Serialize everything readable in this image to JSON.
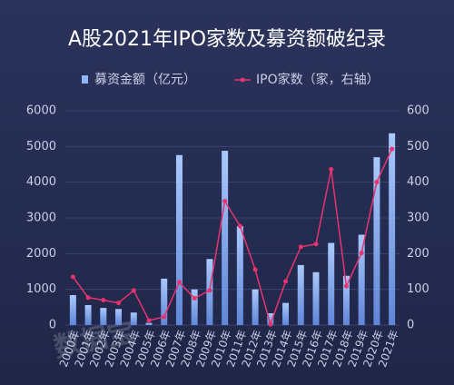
{
  "chart_data": {
    "type": "bar_line",
    "title": "A股2021年IPO家数及募资额破纪录",
    "watermark": "数据宝",
    "categories": [
      "2000年",
      "2001年",
      "2002年",
      "2003年",
      "2004年",
      "2005年",
      "2006年",
      "2007年",
      "2008年",
      "2009年",
      "2010年",
      "2011年",
      "2012年",
      "2013年",
      "2014年",
      "2015年",
      "2016年",
      "2017年",
      "2018年",
      "2019年",
      "2020年",
      "2021年"
    ],
    "series": [
      {
        "name": "募资金额（亿元）",
        "color": "#8fb6f7",
        "kind": "bar",
        "axis": "y",
        "values": [
          840,
          560,
          480,
          450,
          350,
          60,
          1300,
          4760,
          1000,
          1850,
          4880,
          2770,
          1000,
          330,
          620,
          1680,
          1480,
          2300,
          1380,
          2530,
          4700,
          5370
        ]
      },
      {
        "name": "IPO家数（家，右轴）",
        "color": "#e8336e",
        "kind": "line",
        "axis": "y2",
        "values": [
          135,
          77,
          70,
          62,
          97,
          13,
          23,
          120,
          75,
          97,
          347,
          277,
          155,
          2,
          122,
          219,
          227,
          436,
          109,
          202,
          400,
          493
        ]
      }
    ],
    "ylim": [
      0,
      6000
    ],
    "yticks": [
      0,
      1000,
      2000,
      3000,
      4000,
      5000,
      6000
    ],
    "y2lim": [
      0,
      600
    ],
    "y2ticks": [
      0,
      100,
      200,
      300,
      400,
      500,
      600
    ],
    "legend": "top"
  }
}
